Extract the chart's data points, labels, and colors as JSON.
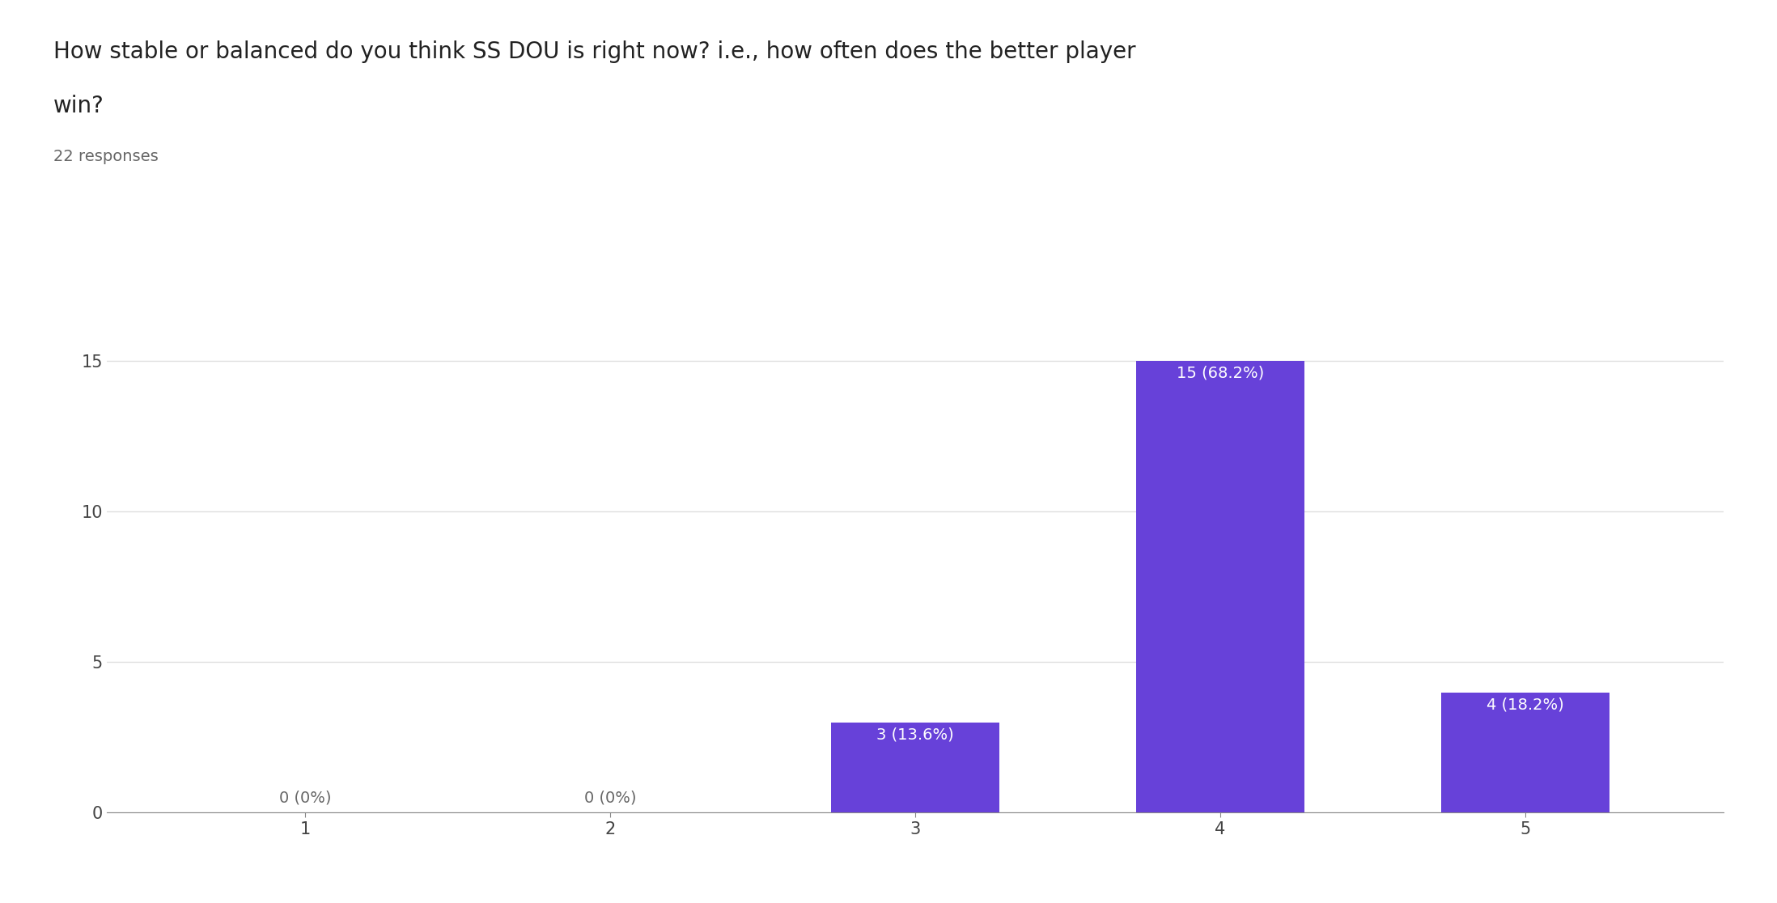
{
  "title_line1": "How stable or balanced do you think SS DOU is right now? i.e., how often does the better player",
  "title_line2": "win?",
  "subtitle": "22 responses",
  "categories": [
    1,
    2,
    3,
    4,
    5
  ],
  "values": [
    0,
    0,
    3,
    15,
    4
  ],
  "labels": [
    "0 (0%)",
    "0 (0%)",
    "3 (13.6%)",
    "15 (68.2%)",
    "4 (18.2%)"
  ],
  "bar_color": "#6741d9",
  "label_color_inside": "#ffffff",
  "label_color_outside": "#666666",
  "ylim": [
    0,
    16.5
  ],
  "yticks": [
    0,
    5,
    10,
    15
  ],
  "background_color": "#ffffff",
  "grid_color": "#e0e0e0",
  "title_fontsize": 20,
  "subtitle_fontsize": 14,
  "tick_fontsize": 15,
  "label_fontsize": 14,
  "bar_width": 0.55
}
